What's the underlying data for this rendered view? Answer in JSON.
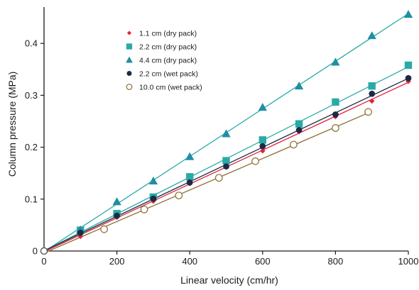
{
  "chart_data": {
    "type": "scatter",
    "title": "",
    "xlabel": "Linear velocity (cm/hr)",
    "ylabel": "Column pressure (MPa)",
    "xlim": [
      0,
      1000
    ],
    "ylim": [
      0,
      0.47
    ],
    "xticks": [
      0,
      200,
      400,
      600,
      800,
      1000
    ],
    "yticks": [
      0,
      0.1,
      0.2,
      0.3,
      0.4
    ],
    "xtick_labels": [
      "0",
      "200",
      "400",
      "600",
      "800",
      "1000"
    ],
    "ytick_labels": [
      "0",
      "0.1",
      "0.2",
      "0.3",
      "0.4"
    ],
    "grid": false,
    "legend_position": "top-left",
    "series": [
      {
        "name": "1.1 cm (dry pack)",
        "marker": "diamond",
        "color": "#e0243c",
        "line_color": "#e0243c",
        "x": [
          0,
          100,
          200,
          300,
          400,
          500,
          600,
          700,
          800,
          900,
          1000
        ],
        "y": [
          0,
          0.028,
          0.065,
          0.096,
          0.13,
          0.162,
          0.193,
          0.23,
          0.259,
          0.289,
          0.327
        ]
      },
      {
        "name": "2.2 cm (dry pack)",
        "marker": "square",
        "color": "#2aaaa6",
        "line_color": "#2aaaa6",
        "x": [
          0,
          100,
          200,
          300,
          400,
          500,
          600,
          700,
          800,
          900,
          1000
        ],
        "y": [
          0,
          0.04,
          0.072,
          0.104,
          0.143,
          0.174,
          0.214,
          0.245,
          0.287,
          0.318,
          0.358
        ]
      },
      {
        "name": "4.4 cm (dry pack)",
        "marker": "triangle",
        "color": "#1f8fa3",
        "line_color": "#2aaaa6",
        "x": [
          0,
          100,
          200,
          300,
          400,
          500,
          600,
          700,
          800,
          900,
          1000
        ],
        "y": [
          0,
          0.041,
          0.095,
          0.135,
          0.182,
          0.226,
          0.277,
          0.318,
          0.364,
          0.415,
          0.456
        ]
      },
      {
        "name": "2.2 cm (wet pack)",
        "marker": "circle",
        "color": "#1c2a44",
        "line_color": "#1c2a44",
        "x": [
          0,
          100,
          200,
          300,
          400,
          500,
          600,
          700,
          800,
          900,
          1000
        ],
        "y": [
          0,
          0.035,
          0.068,
          0.101,
          0.132,
          0.163,
          0.202,
          0.233,
          0.263,
          0.303,
          0.333
        ]
      },
      {
        "name": "10.0 cm (wet pack)",
        "marker": "open-circle",
        "color": "#8b6d2f",
        "line_color": "#8b6d2f",
        "x": [
          0,
          165,
          275,
          370,
          480,
          580,
          685,
          800,
          890
        ],
        "y": [
          0,
          0.042,
          0.08,
          0.107,
          0.141,
          0.173,
          0.205,
          0.237,
          0.268
        ]
      }
    ]
  }
}
